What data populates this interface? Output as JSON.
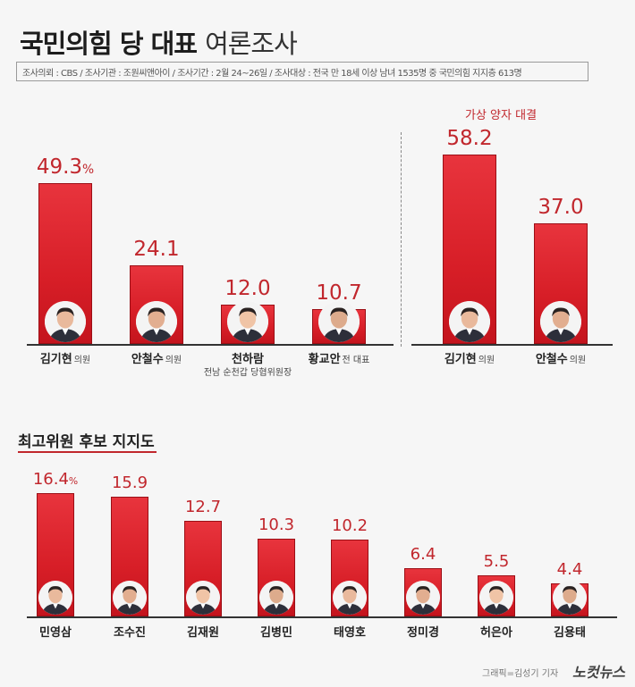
{
  "header": {
    "title_bold": "국민의힘 당 대표",
    "title_light": "여론조사",
    "source": "조사의뢰 : CBS / 조사기관 : 조원씨앤아이 / 조사기간 : 2월 24~26일 / 조사대상 : 전국 만 18세 이상 남녀 1535명 중 국민의힘 지지층 613명"
  },
  "pair_title": "가상 양자 대결",
  "section2_title": "최고위원 후보 지지도",
  "credit": "그래픽=김성기 기자",
  "logo": "노컷뉴스",
  "colors": {
    "bar": "#d71e27",
    "value_text": "#c1272d"
  },
  "chart_data": [
    {
      "type": "bar",
      "title": "국민의힘 당 대표 여론조사",
      "unit": "%",
      "categories": [
        "김기현",
        "안철수",
        "천하람",
        "황교안"
      ],
      "roles": [
        "의원",
        "의원",
        "",
        "전 대표"
      ],
      "sublabels": [
        "",
        "",
        "전남 순천갑 당협위원장",
        ""
      ],
      "values": [
        49.3,
        24.1,
        12.0,
        10.7
      ],
      "value_labels": [
        "49.3",
        "24.1",
        "12.0",
        "10.7"
      ]
    },
    {
      "type": "bar",
      "title": "가상 양자 대결",
      "categories": [
        "김기현",
        "안철수"
      ],
      "roles": [
        "의원",
        "의원"
      ],
      "values": [
        58.2,
        37.0
      ],
      "value_labels": [
        "58.2",
        "37.0"
      ]
    },
    {
      "type": "bar",
      "title": "최고위원 후보 지지도",
      "unit": "%",
      "categories": [
        "민영삼",
        "조수진",
        "김재원",
        "김병민",
        "태영호",
        "정미경",
        "허은아",
        "김용태"
      ],
      "values": [
        16.4,
        15.9,
        12.7,
        10.3,
        10.2,
        6.4,
        5.5,
        4.4
      ],
      "value_labels": [
        "16.4",
        "15.9",
        "12.7",
        "10.3",
        "10.2",
        "6.4",
        "5.5",
        "4.4"
      ]
    }
  ]
}
